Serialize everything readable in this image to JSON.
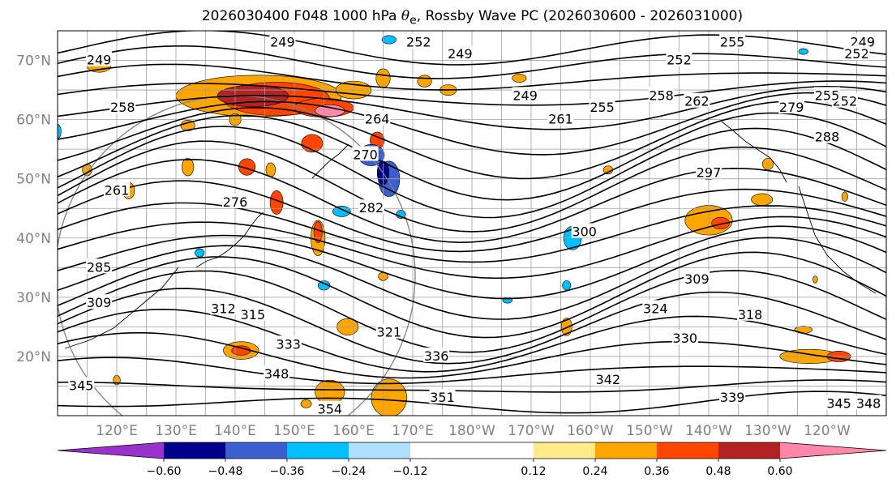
{
  "title": {
    "prefix": "2026030400 F048 1000 hPa ",
    "symbol": "θ",
    "subscript": "e",
    "suffix": ", Rossby Wave PC (2026030600 - 2026031000)"
  },
  "map": {
    "projection": "equirectangular",
    "lon_range": [
      110,
      250
    ],
    "lat_range": [
      10,
      75
    ],
    "lat_ticks": [
      "20°N",
      "30°N",
      "40°N",
      "50°N",
      "60°N",
      "70°N"
    ],
    "lon_ticks": [
      "120°E",
      "130°E",
      "140°E",
      "150°E",
      "160°E",
      "170°E",
      "180°W",
      "170°W",
      "160°W",
      "150°W",
      "140°W",
      "130°W",
      "120°W"
    ],
    "gridlines": true,
    "contour_variable": "1000 hPa theta-e (K)",
    "contour_labels": [
      {
        "text": "249",
        "lon": 148,
        "lat": 73
      },
      {
        "text": "249",
        "lon": 117,
        "lat": 70
      },
      {
        "text": "252",
        "lon": 171,
        "lat": 73
      },
      {
        "text": "249",
        "lon": 178,
        "lat": 71
      },
      {
        "text": "255",
        "lon": 224,
        "lat": 73
      },
      {
        "text": "252",
        "lon": 215,
        "lat": 70
      },
      {
        "text": "249",
        "lon": 246,
        "lat": 73
      },
      {
        "text": "252",
        "lon": 245,
        "lat": 71
      },
      {
        "text": "252",
        "lon": 243,
        "lat": 63
      },
      {
        "text": "249",
        "lon": 189,
        "lat": 64
      },
      {
        "text": "258",
        "lon": 121,
        "lat": 62
      },
      {
        "text": "255",
        "lon": 202,
        "lat": 62
      },
      {
        "text": "258",
        "lon": 212,
        "lat": 64
      },
      {
        "text": "262",
        "lon": 218,
        "lat": 63
      },
      {
        "text": "279",
        "lon": 234,
        "lat": 62
      },
      {
        "text": "255",
        "lon": 240,
        "lat": 64
      },
      {
        "text": "261",
        "lon": 195,
        "lat": 60
      },
      {
        "text": "264",
        "lon": 164,
        "lat": 60
      },
      {
        "text": "270",
        "lon": 162,
        "lat": 54
      },
      {
        "text": "288",
        "lon": 240,
        "lat": 57
      },
      {
        "text": "297",
        "lon": 220,
        "lat": 51
      },
      {
        "text": "261",
        "lon": 120,
        "lat": 48
      },
      {
        "text": "276",
        "lon": 140,
        "lat": 46
      },
      {
        "text": "282",
        "lon": 163,
        "lat": 45
      },
      {
        "text": "300",
        "lon": 199,
        "lat": 41
      },
      {
        "text": "285",
        "lon": 117,
        "lat": 35
      },
      {
        "text": "309",
        "lon": 218,
        "lat": 33
      },
      {
        "text": "309",
        "lon": 117,
        "lat": 29
      },
      {
        "text": "312",
        "lon": 138,
        "lat": 28
      },
      {
        "text": "315",
        "lon": 143,
        "lat": 27
      },
      {
        "text": "324",
        "lon": 211,
        "lat": 28
      },
      {
        "text": "318",
        "lon": 227,
        "lat": 27
      },
      {
        "text": "321",
        "lon": 166,
        "lat": 24
      },
      {
        "text": "330",
        "lon": 216,
        "lat": 23
      },
      {
        "text": "333",
        "lon": 149,
        "lat": 22
      },
      {
        "text": "336",
        "lon": 174,
        "lat": 20
      },
      {
        "text": "348",
        "lon": 147,
        "lat": 17
      },
      {
        "text": "342",
        "lon": 203,
        "lat": 16
      },
      {
        "text": "345",
        "lon": 114,
        "lat": 15
      },
      {
        "text": "339",
        "lon": 224,
        "lat": 13
      },
      {
        "text": "351",
        "lon": 175,
        "lat": 13
      },
      {
        "text": "354",
        "lon": 156,
        "lat": 11
      },
      {
        "text": "345",
        "lon": 242,
        "lat": 12
      },
      {
        "text": "348",
        "lon": 247,
        "lat": 12
      }
    ],
    "shading_variable": "Rossby Wave PC",
    "shaded_regions": [
      {
        "lon": 144,
        "lat": 64,
        "rx": 14,
        "ry": 3.5,
        "color": "#FFA500"
      },
      {
        "lon": 147,
        "lat": 63.5,
        "rx": 9,
        "ry": 2.8,
        "color": "#FF4500"
      },
      {
        "lon": 143,
        "lat": 64,
        "rx": 6,
        "ry": 1.8,
        "color": "#B22222"
      },
      {
        "lon": 155,
        "lat": 62,
        "rx": 5,
        "ry": 1.6,
        "color": "#FF4500"
      },
      {
        "lon": 156,
        "lat": 61.5,
        "rx": 2.5,
        "ry": 1.0,
        "color": "#FF88AA"
      },
      {
        "lon": 160,
        "lat": 65,
        "rx": 3,
        "ry": 1.5,
        "color": "#FFA500"
      },
      {
        "lon": 165,
        "lat": 67,
        "rx": 1.2,
        "ry": 1.6,
        "color": "#FFA500"
      },
      {
        "lon": 172,
        "lat": 66.5,
        "rx": 1.2,
        "ry": 1.0,
        "color": "#FFA500"
      },
      {
        "lon": 188,
        "lat": 67,
        "rx": 1.2,
        "ry": 0.7,
        "color": "#FFA500"
      },
      {
        "lon": 140,
        "lat": 60,
        "rx": 1.0,
        "ry": 1.0,
        "color": "#FFA500"
      },
      {
        "lon": 117,
        "lat": 69,
        "rx": 2.0,
        "ry": 1.0,
        "color": "#FFA500"
      },
      {
        "lon": 153,
        "lat": 56,
        "rx": 1.8,
        "ry": 1.5,
        "color": "#FF4500"
      },
      {
        "lon": 164,
        "lat": 56.5,
        "rx": 1.2,
        "ry": 1.4,
        "color": "#FF4500"
      },
      {
        "lon": 142,
        "lat": 52,
        "rx": 1.4,
        "ry": 1.4,
        "color": "#FF4500"
      },
      {
        "lon": 132,
        "lat": 52,
        "rx": 1.0,
        "ry": 1.5,
        "color": "#FFA500"
      },
      {
        "lon": 115,
        "lat": 51.5,
        "rx": 0.8,
        "ry": 1.0,
        "color": "#FFA500"
      },
      {
        "lon": 122,
        "lat": 48,
        "rx": 1.0,
        "ry": 1.4,
        "color": "#FFA500"
      },
      {
        "lon": 146,
        "lat": 51.5,
        "rx": 0.8,
        "ry": 1.2,
        "color": "#FFA500"
      },
      {
        "lon": 147,
        "lat": 46,
        "rx": 1.1,
        "ry": 2.0,
        "color": "#FF4500"
      },
      {
        "lon": 132,
        "lat": 59,
        "rx": 1.2,
        "ry": 0.9,
        "color": "#FFA500"
      },
      {
        "lon": 110,
        "lat": 58,
        "rx": 0.6,
        "ry": 1.2,
        "color": "#00BFFF"
      },
      {
        "lon": 163,
        "lat": 54,
        "rx": 2.2,
        "ry": 1.8,
        "color": "#3B5FD0"
      },
      {
        "lon": 166,
        "lat": 50,
        "rx": 1.8,
        "ry": 3.0,
        "color": "#3B5FD0"
      },
      {
        "lon": 165,
        "lat": 51,
        "rx": 1.0,
        "ry": 2.0,
        "color": "#00008B"
      },
      {
        "lon": 158,
        "lat": 44.5,
        "rx": 1.5,
        "ry": 0.9,
        "color": "#00BFFF"
      },
      {
        "lon": 168,
        "lat": 44,
        "rx": 0.8,
        "ry": 0.7,
        "color": "#00BFFF"
      },
      {
        "lon": 166,
        "lat": 73.5,
        "rx": 1.2,
        "ry": 0.7,
        "color": "#00BFFF"
      },
      {
        "lon": 236,
        "lat": 71.5,
        "rx": 0.8,
        "ry": 0.5,
        "color": "#00BFFF"
      },
      {
        "lon": 220,
        "lat": 51,
        "rx": 1.8,
        "ry": 1.1,
        "color": "#00BFFF"
      },
      {
        "lon": 197,
        "lat": 40,
        "rx": 1.5,
        "ry": 2.0,
        "color": "#00BFFF"
      },
      {
        "lon": 155,
        "lat": 32,
        "rx": 1.0,
        "ry": 0.8,
        "color": "#00BFFF"
      },
      {
        "lon": 196,
        "lat": 32,
        "rx": 0.7,
        "ry": 0.8,
        "color": "#00BFFF"
      },
      {
        "lon": 134,
        "lat": 37.5,
        "rx": 0.8,
        "ry": 0.7,
        "color": "#00BFFF"
      },
      {
        "lon": 186,
        "lat": 29.5,
        "rx": 0.8,
        "ry": 0.5,
        "color": "#00BFFF"
      },
      {
        "lon": 154,
        "lat": 40,
        "rx": 1.2,
        "ry": 3.0,
        "color": "#FFA500"
      },
      {
        "lon": 154,
        "lat": 41,
        "rx": 0.7,
        "ry": 1.8,
        "color": "#FF4500"
      },
      {
        "lon": 176,
        "lat": 65,
        "rx": 1.4,
        "ry": 0.9,
        "color": "#FFA500"
      },
      {
        "lon": 220,
        "lat": 43,
        "rx": 4.0,
        "ry": 2.5,
        "color": "#FFA500"
      },
      {
        "lon": 222,
        "lat": 42.5,
        "rx": 1.5,
        "ry": 1.0,
        "color": "#FF4500"
      },
      {
        "lon": 229,
        "lat": 46.5,
        "rx": 1.8,
        "ry": 1.0,
        "color": "#FFA500"
      },
      {
        "lon": 230,
        "lat": 52.5,
        "rx": 0.9,
        "ry": 1.0,
        "color": "#FFA500"
      },
      {
        "lon": 203,
        "lat": 51.5,
        "rx": 0.8,
        "ry": 0.7,
        "color": "#FFA500"
      },
      {
        "lon": 243,
        "lat": 47,
        "rx": 0.5,
        "ry": 0.8,
        "color": "#FFA500"
      },
      {
        "lon": 196,
        "lat": 25,
        "rx": 0.9,
        "ry": 1.5,
        "color": "#FFA500"
      },
      {
        "lon": 165,
        "lat": 33.5,
        "rx": 0.8,
        "ry": 0.7,
        "color": "#FFA500"
      },
      {
        "lon": 238,
        "lat": 33,
        "rx": 0.4,
        "ry": 0.6,
        "color": "#FFA500"
      },
      {
        "lon": 237,
        "lat": 20,
        "rx": 5.0,
        "ry": 1.2,
        "color": "#FFA500"
      },
      {
        "lon": 242,
        "lat": 20,
        "rx": 2.0,
        "ry": 0.9,
        "color": "#FF4500"
      },
      {
        "lon": 141,
        "lat": 21,
        "rx": 3.0,
        "ry": 1.5,
        "color": "#FFA500"
      },
      {
        "lon": 141,
        "lat": 21,
        "rx": 1.6,
        "ry": 0.8,
        "color": "#FF4500"
      },
      {
        "lon": 159,
        "lat": 25,
        "rx": 1.8,
        "ry": 1.4,
        "color": "#FFA500"
      },
      {
        "lon": 156,
        "lat": 14,
        "rx": 2.5,
        "ry": 2.0,
        "color": "#FFA500"
      },
      {
        "lon": 166,
        "lat": 13,
        "rx": 2.0,
        "ry": 2.5,
        "color": "#FF4500"
      },
      {
        "lon": 166,
        "lat": 13,
        "rx": 3.0,
        "ry": 3.2,
        "color": "#FFA500"
      },
      {
        "lon": 152,
        "lat": 12,
        "rx": 0.9,
        "ry": 0.7,
        "color": "#FFA500"
      },
      {
        "lon": 120,
        "lat": 16,
        "rx": 0.6,
        "ry": 0.8,
        "color": "#FFA500"
      },
      {
        "lon": 236,
        "lat": 24.5,
        "rx": 1.5,
        "ry": 0.6,
        "color": "#FFA500"
      }
    ]
  },
  "colorbar": {
    "orientation": "horizontal",
    "boundaries": [
      -0.72,
      -0.6,
      -0.48,
      -0.36,
      -0.24,
      -0.12,
      0.12,
      0.24,
      0.36,
      0.48,
      0.6,
      0.72
    ],
    "colors": [
      "#9932CC",
      "#00008B",
      "#3B5FD0",
      "#00BFFF",
      "#ADDFFF",
      "#FFFFFF",
      "#FFEB8A",
      "#FFA500",
      "#FF4500",
      "#B22222",
      "#FF88AA"
    ],
    "extend": "both",
    "tick_labels": [
      "−0.60",
      "−0.48",
      "−0.36",
      "−0.24",
      "−0.12",
      "0.12",
      "0.24",
      "0.36",
      "0.48",
      "0.60"
    ]
  }
}
